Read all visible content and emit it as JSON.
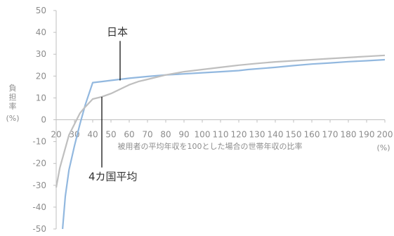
{
  "chart_data": {
    "type": "line",
    "xlabel": "被用者の平均年収を100とした場合の世帯年収の比率",
    "xunit": "(%)",
    "ylabel": [
      "負",
      "担",
      "率",
      "(%)"
    ],
    "xlim": [
      20,
      200
    ],
    "ylim": [
      -50,
      50
    ],
    "x_ticks": [
      20,
      30,
      40,
      50,
      60,
      70,
      80,
      90,
      100,
      110,
      120,
      130,
      140,
      150,
      160,
      170,
      180,
      190,
      200
    ],
    "y_ticks": [
      50,
      40,
      30,
      20,
      10,
      0,
      -10,
      -20,
      -30,
      -40,
      -50
    ],
    "grid": false,
    "legend": "none",
    "series": [
      {
        "name": "日本",
        "color": "#92b8df",
        "points": [
          [
            23.5,
            -50
          ],
          [
            25,
            -35
          ],
          [
            27,
            -23
          ],
          [
            30,
            -12
          ],
          [
            33,
            -2
          ],
          [
            36,
            7
          ],
          [
            40,
            17
          ],
          [
            45,
            17.5
          ],
          [
            50,
            18
          ],
          [
            60,
            19
          ],
          [
            70,
            19.8
          ],
          [
            80,
            20.5
          ],
          [
            90,
            21
          ],
          [
            100,
            21.5
          ],
          [
            110,
            22
          ],
          [
            120,
            22.5
          ],
          [
            125,
            23
          ],
          [
            140,
            24
          ],
          [
            150,
            24.8
          ],
          [
            160,
            25.5
          ],
          [
            170,
            26
          ],
          [
            180,
            26.6
          ],
          [
            190,
            27
          ],
          [
            200,
            27.5
          ]
        ]
      },
      {
        "name": "4カ国平均",
        "color": "#bfbfbf",
        "points": [
          [
            20,
            -31
          ],
          [
            22,
            -22
          ],
          [
            25,
            -13
          ],
          [
            27,
            -7
          ],
          [
            30,
            -2
          ],
          [
            33,
            3
          ],
          [
            35,
            5
          ],
          [
            40,
            9.5
          ],
          [
            45,
            10.5
          ],
          [
            50,
            12
          ],
          [
            55,
            14
          ],
          [
            60,
            16
          ],
          [
            65,
            17.5
          ],
          [
            70,
            18.5
          ],
          [
            80,
            20.5
          ],
          [
            90,
            22
          ],
          [
            100,
            23
          ],
          [
            110,
            24
          ],
          [
            120,
            25
          ],
          [
            130,
            25.8
          ],
          [
            140,
            26.5
          ],
          [
            150,
            27
          ],
          [
            160,
            27.5
          ],
          [
            170,
            28
          ],
          [
            180,
            28.5
          ],
          [
            190,
            29
          ],
          [
            200,
            29.5
          ]
        ]
      }
    ],
    "annotations": [
      {
        "text": "日本",
        "x": 55,
        "y": 18,
        "label_y": 38
      },
      {
        "text": "4カ国平均",
        "x": 45,
        "y": 10.5,
        "label_y": -27
      }
    ]
  }
}
